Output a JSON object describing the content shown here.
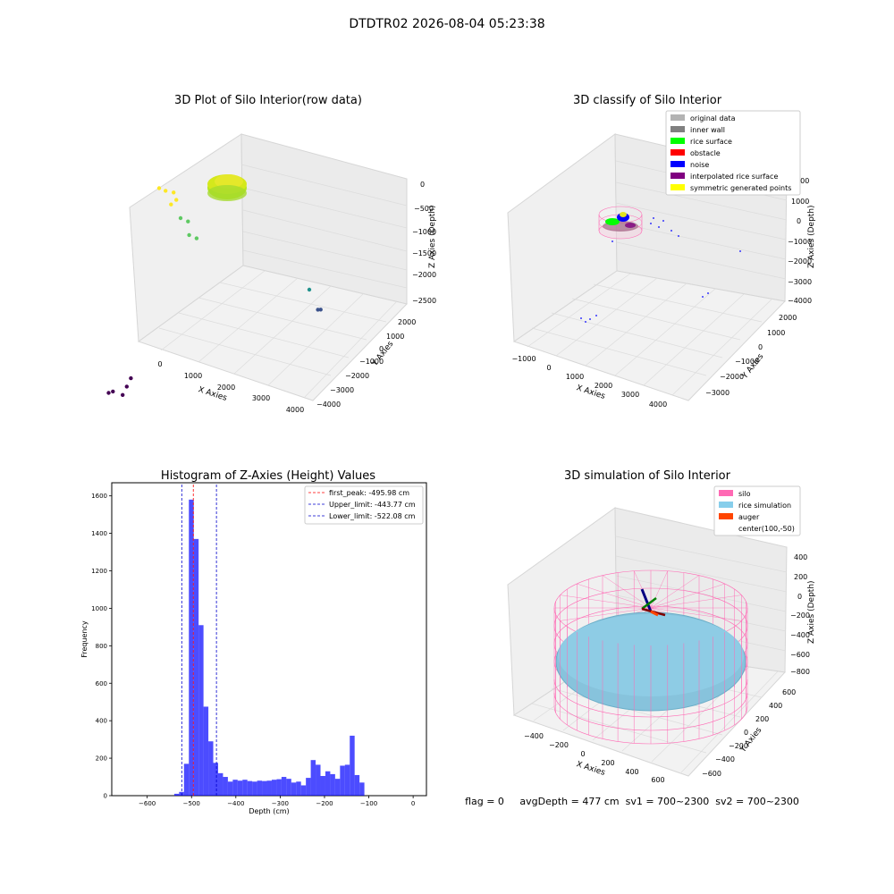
{
  "figure_title": "DTDTR02 2026-08-04 05:23:38",
  "status_line": "flag = 0     avgDepth = 477 cm  sv1 = 700~2300  sv2 = 700~2300",
  "chart_data": [
    {
      "type": "scatter",
      "projection": "3d",
      "title": "3D Plot of Silo Interior(row data)",
      "xlabel": "X Axies",
      "ylabel": "Y Axies",
      "zlabel": "Z Axies (Depth)",
      "x_ticks": [
        "0",
        "1000",
        "2000",
        "3000",
        "4000"
      ],
      "y_ticks": [
        "2000",
        "1000",
        "0",
        "−1000",
        "−2000",
        "−3000",
        "−4000"
      ],
      "z_ticks": [
        "0",
        "−500",
        "−1000",
        "−1500",
        "−2000",
        "−2500"
      ],
      "colormap": "viridis",
      "points": [
        {
          "x": 0,
          "y": 0,
          "z": -100
        },
        {
          "x": 150,
          "y": 0,
          "z": -120
        },
        {
          "x": 300,
          "y": 50,
          "z": -150
        },
        {
          "x": 400,
          "y": 0,
          "z": -250
        },
        {
          "x": 350,
          "y": -100,
          "z": -300
        },
        {
          "x": 500,
          "y": 0,
          "z": -600
        },
        {
          "x": 600,
          "y": 100,
          "z": -700
        },
        {
          "x": 700,
          "y": 0,
          "z": -900
        },
        {
          "x": 800,
          "y": 100,
          "z": -1000
        },
        {
          "x": 3500,
          "y": 0,
          "z": -1400
        },
        {
          "x": 3400,
          "y": 500,
          "z": -2100
        },
        {
          "x": 3300,
          "y": 550,
          "z": -2150
        },
        {
          "x": 800,
          "y": -2000,
          "z": -2700
        },
        {
          "x": 850,
          "y": -2200,
          "z": -2750
        },
        {
          "x": 900,
          "y": -2400,
          "z": -2800
        },
        {
          "x": 600,
          "y": -2300,
          "z": -2850
        },
        {
          "x": 500,
          "y": -2300,
          "z": -2900
        }
      ]
    },
    {
      "type": "scatter",
      "projection": "3d",
      "title": "3D classify of Silo Interior",
      "xlabel": "X Axies",
      "ylabel": "Y Axies",
      "zlabel": "Z Axies (Depth)",
      "x_ticks": [
        "−1000",
        "0",
        "1000",
        "2000",
        "3000",
        "4000"
      ],
      "y_ticks": [
        "2000",
        "1000",
        "0",
        "−1000",
        "−2000",
        "−3000"
      ],
      "z_ticks": [
        "2000",
        "1000",
        "0",
        "−1000",
        "−2000",
        "−3000",
        "−4000"
      ],
      "legend_position": "top-right",
      "legend": [
        {
          "label": "original data",
          "color": "#b3b3b3"
        },
        {
          "label": "inner wall",
          "color": "#808080"
        },
        {
          "label": "rice surface",
          "color": "#00ff00"
        },
        {
          "label": "obstacle",
          "color": "#ff0000"
        },
        {
          "label": "noise",
          "color": "#0000ff"
        },
        {
          "label": "interpolated rice surface",
          "color": "#800080"
        },
        {
          "label": "symmetric generated points",
          "color": "#ffff00"
        }
      ]
    },
    {
      "type": "bar",
      "title": "Histogram of Z-Axies (Height) Values",
      "xlabel": "Depth (cm)",
      "ylabel": "Frequency",
      "xlim": [
        -680,
        30
      ],
      "ylim": [
        0,
        1670
      ],
      "x_ticks": [
        -600,
        -500,
        -400,
        -300,
        -200,
        -100,
        0
      ],
      "y_ticks": [
        0,
        200,
        400,
        600,
        800,
        1000,
        1200,
        1400,
        1600
      ],
      "bar_color": "#0000ff",
      "bin_width": 11,
      "bin_start": -539,
      "values": [
        10,
        20,
        170,
        1580,
        1370,
        910,
        475,
        290,
        175,
        120,
        100,
        75,
        85,
        80,
        85,
        78,
        75,
        80,
        78,
        80,
        85,
        88,
        100,
        90,
        70,
        75,
        55,
        95,
        190,
        165,
        105,
        130,
        115,
        90,
        160,
        165,
        320,
        110,
        70
      ],
      "lines": [
        {
          "label": "first_peak: -495.98 cm",
          "value": -495.98,
          "color": "#ff0000"
        },
        {
          "label": "Upper_limit: -443.77 cm",
          "value": -443.77,
          "color": "#0000cc"
        },
        {
          "label": "Lower_limit: -522.08 cm",
          "value": -522.08,
          "color": "#0000cc"
        }
      ],
      "legend_position": "top-right"
    },
    {
      "type": "scatter",
      "projection": "3d",
      "title": "3D simulation of Silo Interior",
      "xlabel": "X Axies",
      "ylabel": "Y Axies",
      "zlabel": "Z Axies (Depth)",
      "x_ticks": [
        "−400",
        "−200",
        "0",
        "200",
        "400",
        "600"
      ],
      "y_ticks": [
        "600",
        "400",
        "200",
        "0",
        "−200",
        "−400",
        "−600"
      ],
      "z_ticks": [
        "400",
        "200",
        "0",
        "−200",
        "−400",
        "−600",
        "−800"
      ],
      "legend_position": "top-right",
      "legend": [
        {
          "label": "silo",
          "color": "#ff69b4"
        },
        {
          "label": "rice simulation",
          "color": "#87ceeb"
        },
        {
          "label": "auger",
          "color": "#ff4500"
        },
        {
          "label": "center(100,-50)",
          "color": ""
        }
      ]
    }
  ]
}
